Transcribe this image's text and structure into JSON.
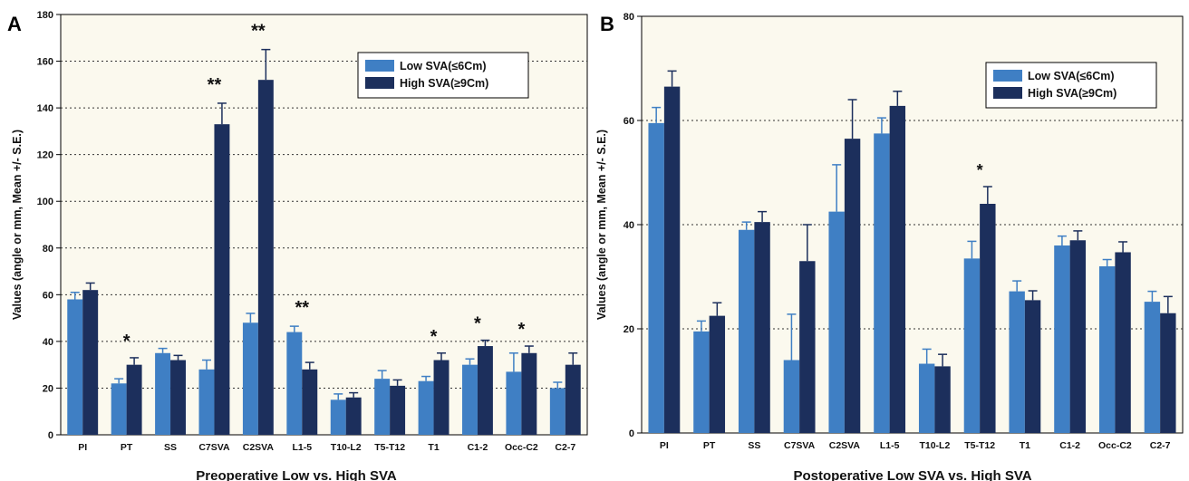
{
  "colors": {
    "low": "#3f7fc4",
    "high": "#1c2f5c",
    "plot_bg": "#fbf9ee",
    "grid": "#333333"
  },
  "chart_data": [
    {
      "type": "bar",
      "panel_label": "A",
      "title": "",
      "xlabel": "Preoperative Low vs. High SVA",
      "ylabel": "Values (angle or mm, Mean +/- S.E.)",
      "ylim": [
        0,
        180
      ],
      "yticks": [
        0,
        20,
        40,
        60,
        80,
        100,
        120,
        140,
        160,
        180
      ],
      "grid": "horizontal dotted",
      "legend_position": "top-right",
      "categories": [
        "PI",
        "PT",
        "SS",
        "C7SVA",
        "C2SVA",
        "L1-5",
        "T10-L2",
        "T5-T12",
        "T1",
        "C1-2",
        "Occ-C2",
        "C2-7"
      ],
      "series": [
        {
          "name": "Low SVA(≤6Cm)",
          "values": [
            58,
            22,
            35,
            28,
            48,
            44,
            15,
            24,
            23,
            30,
            27,
            20
          ],
          "errors": [
            3,
            2,
            2,
            4,
            4,
            2.5,
            2.5,
            3.5,
            2,
            2.5,
            8,
            2.5
          ]
        },
        {
          "name": "High SVA(≥9Cm)",
          "values": [
            62,
            30,
            32,
            133,
            152,
            28,
            16,
            21,
            32,
            38,
            35,
            30
          ],
          "errors": [
            3,
            3,
            2,
            9,
            13,
            3,
            2,
            2.5,
            3,
            2.5,
            3,
            5
          ]
        }
      ],
      "significance": [
        "",
        "*",
        "",
        "**",
        "**",
        "**",
        "",
        "",
        "*",
        "*",
        "*",
        ""
      ]
    },
    {
      "type": "bar",
      "panel_label": "B",
      "title": "",
      "xlabel": "Postoperative Low SVA vs. High SVA",
      "ylabel": "Values (angle or mm, Mean +/- S.E.)",
      "ylim": [
        0,
        80
      ],
      "yticks": [
        0,
        20,
        40,
        60,
        80
      ],
      "grid": "horizontal dotted",
      "legend_position": "top-right",
      "categories": [
        "PI",
        "PT",
        "SS",
        "C7SVA",
        "C2SVA",
        "L1-5",
        "T10-L2",
        "T5-T12",
        "T1",
        "C1-2",
        "Occ-C2",
        "C2-7"
      ],
      "series": [
        {
          "name": "Low SVA(≤6Cm)",
          "values": [
            59.5,
            19.5,
            39,
            14,
            42.5,
            57.5,
            13.3,
            33.5,
            27.2,
            36,
            32,
            25.2
          ],
          "errors": [
            3,
            2,
            1.5,
            8.8,
            9,
            3,
            2.8,
            3.3,
            2,
            1.8,
            1.3,
            2
          ]
        },
        {
          "name": "High SVA(≥9Cm)",
          "values": [
            66.5,
            22.5,
            40.5,
            33,
            56.5,
            62.8,
            12.8,
            44,
            25.5,
            37,
            34.7,
            23
          ],
          "errors": [
            3,
            2.5,
            2,
            7,
            7.5,
            2.8,
            2.3,
            3.3,
            1.8,
            1.8,
            2,
            3.2
          ]
        }
      ],
      "significance": [
        "",
        "",
        "",
        "",
        "",
        "",
        "",
        "*",
        "",
        "",
        "",
        ""
      ]
    }
  ]
}
